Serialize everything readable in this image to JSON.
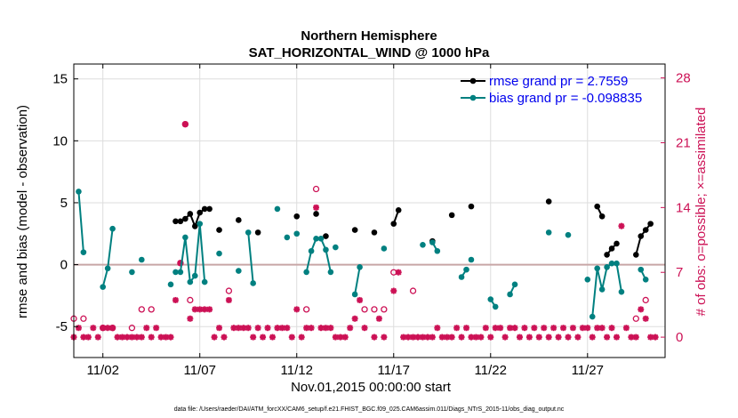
{
  "chart_data": {
    "type": "scatter",
    "title": "Northern Hemisphere",
    "subtitle": "SAT_HORIZONTAL_WIND @ 1000 hPa",
    "xlabel": "Nov.01,2015 00:00:00 start",
    "ylabel": "rmse and bias (model - observation)",
    "ylabel_right": "# of obs: o=possible; ×=assimilated",
    "footer": "data file: /Users/raeder/DAI/ATM_forcXX/CAM6_setup/f.e21.FHIST_BGC.f09_025.CAM6assim.011/Diags_NTrS_2015-11/obs_diag_output.nc",
    "xlim": [
      0.5,
      31.0
    ],
    "ylim": [
      -7.5,
      16.2
    ],
    "yticks": [
      -5,
      0,
      5,
      10,
      15
    ],
    "ylim_right": [
      -2.2,
      29.5
    ],
    "yticks_right": [
      0,
      7,
      14,
      21,
      28
    ],
    "xticks": [
      {
        "value": 2,
        "label": "11/02"
      },
      {
        "value": 7,
        "label": "11/07"
      },
      {
        "value": 12,
        "label": "11/12"
      },
      {
        "value": 17,
        "label": "11/17"
      },
      {
        "value": 22,
        "label": "11/22"
      },
      {
        "value": 27,
        "label": "11/27"
      }
    ],
    "grid": true,
    "legend_position": "top-right",
    "colors": {
      "rmse": "#000000",
      "bias": "#008080",
      "obs": "#cc1155",
      "zero_line": "#c8a6a6"
    },
    "series": [
      {
        "name": "rmse grand pr = 2.7559",
        "segments": [
          [
            [
              5.75,
              3.5
            ],
            [
              6.0,
              3.5
            ],
            [
              6.25,
              3.7
            ],
            [
              6.5,
              4.1
            ],
            [
              6.75,
              3.1
            ],
            [
              7.0,
              4.2
            ],
            [
              7.25,
              4.5
            ],
            [
              7.5,
              4.5
            ]
          ],
          [
            [
              8.0,
              2.8
            ]
          ],
          [
            [
              9.0,
              3.6
            ]
          ],
          [
            [
              10.0,
              2.6
            ]
          ],
          [
            [
              12.0,
              3.9
            ]
          ],
          [
            [
              13.0,
              4.1
            ]
          ],
          [
            [
              13.5,
              2.3
            ]
          ],
          [
            [
              15.0,
              2.8
            ]
          ],
          [
            [
              16.0,
              2.6
            ]
          ],
          [
            [
              17.0,
              3.3
            ],
            [
              17.25,
              4.4
            ]
          ],
          [
            [
              19.0,
              1.9
            ]
          ],
          [
            [
              20.0,
              4.0
            ]
          ],
          [
            [
              21.0,
              4.7
            ]
          ],
          [
            [
              25.0,
              5.1
            ]
          ],
          [
            [
              27.5,
              4.7
            ],
            [
              27.75,
              3.9
            ]
          ],
          [
            [
              28.0,
              0.8
            ],
            [
              28.25,
              1.3
            ],
            [
              28.5,
              1.7
            ]
          ],
          [
            [
              29.5,
              0.8
            ],
            [
              29.75,
              2.3
            ],
            [
              30.0,
              2.8
            ],
            [
              30.25,
              3.3
            ]
          ]
        ]
      },
      {
        "name": "bias grand pr = -0.098835",
        "segments": [
          [
            [
              0.75,
              5.9
            ],
            [
              1.0,
              1.0
            ]
          ],
          [
            [
              2.0,
              -1.8
            ],
            [
              2.25,
              -0.3
            ],
            [
              2.5,
              2.9
            ]
          ],
          [
            [
              3.5,
              -0.6
            ]
          ],
          [
            [
              4.0,
              0.4
            ]
          ],
          [
            [
              5.5,
              -1.6
            ]
          ],
          [
            [
              5.75,
              -0.6
            ],
            [
              6.0,
              -0.6
            ],
            [
              6.25,
              2.2
            ],
            [
              6.5,
              -1.4
            ],
            [
              6.75,
              -0.9
            ],
            [
              7.0,
              3.3
            ],
            [
              7.25,
              -1.4
            ]
          ],
          [
            [
              8.0,
              0.9
            ]
          ],
          [
            [
              9.0,
              -0.5
            ]
          ],
          [
            [
              9.5,
              2.6
            ],
            [
              9.75,
              -1.5
            ]
          ],
          [
            [
              11.0,
              4.5
            ]
          ],
          [
            [
              11.5,
              2.2
            ]
          ],
          [
            [
              12.0,
              2.5
            ]
          ],
          [
            [
              12.5,
              -0.6
            ],
            [
              12.75,
              1.1
            ],
            [
              13.0,
              2.1
            ],
            [
              13.25,
              2.1
            ],
            [
              13.5,
              1.2
            ],
            [
              13.75,
              -0.6
            ]
          ],
          [
            [
              14.0,
              1.4
            ]
          ],
          [
            [
              15.0,
              -2.4
            ],
            [
              15.25,
              -0.2
            ]
          ],
          [
            [
              16.5,
              1.3
            ]
          ],
          [
            [
              18.5,
              1.6
            ]
          ],
          [
            [
              19.0,
              1.8
            ],
            [
              19.25,
              1.1
            ]
          ],
          [
            [
              20.5,
              -1.0
            ],
            [
              20.75,
              -0.4
            ]
          ],
          [
            [
              21.0,
              0.4
            ]
          ],
          [
            [
              22.0,
              -2.8
            ],
            [
              22.25,
              -3.4
            ]
          ],
          [
            [
              23.0,
              -2.4
            ],
            [
              23.25,
              -1.6
            ]
          ],
          [
            [
              25.0,
              2.6
            ]
          ],
          [
            [
              26.0,
              2.4
            ]
          ],
          [
            [
              27.0,
              -1.2
            ]
          ],
          [
            [
              27.25,
              -4.2
            ],
            [
              27.5,
              -0.3
            ],
            [
              27.75,
              -2.0
            ],
            [
              28.0,
              -0.2
            ],
            [
              28.25,
              0.1
            ],
            [
              28.5,
              0.1
            ],
            [
              28.75,
              -2.2
            ]
          ],
          [
            [
              29.75,
              -0.4
            ],
            [
              30.0,
              -1.2
            ]
          ]
        ]
      },
      {
        "name": "possible obs",
        "axis": "right",
        "points": [
          [
            0.5,
            2
          ],
          [
            1.0,
            2
          ],
          [
            2.0,
            1
          ],
          [
            2.5,
            1
          ],
          [
            3.5,
            1
          ],
          [
            4.0,
            3
          ],
          [
            4.5,
            3
          ],
          [
            6.0,
            8
          ],
          [
            6.25,
            23
          ],
          [
            6.5,
            4
          ],
          [
            8.5,
            5
          ],
          [
            12.5,
            3
          ],
          [
            13.0,
            16
          ],
          [
            15.5,
            3
          ],
          [
            16.0,
            3
          ],
          [
            16.5,
            3
          ],
          [
            17.0,
            7
          ],
          [
            18.0,
            5
          ],
          [
            29.5,
            2
          ],
          [
            30.0,
            4
          ]
        ]
      },
      {
        "name": "assimilated obs",
        "axis": "right",
        "points": [
          [
            0.5,
            0
          ],
          [
            0.75,
            1
          ],
          [
            1.0,
            0
          ],
          [
            1.25,
            0
          ],
          [
            1.5,
            1
          ],
          [
            1.75,
            0
          ],
          [
            2.0,
            1
          ],
          [
            2.25,
            1
          ],
          [
            2.5,
            1
          ],
          [
            2.75,
            0
          ],
          [
            3.0,
            0
          ],
          [
            3.25,
            0
          ],
          [
            3.5,
            0
          ],
          [
            3.75,
            0
          ],
          [
            4.0,
            0
          ],
          [
            4.25,
            1
          ],
          [
            4.5,
            0
          ],
          [
            4.75,
            1
          ],
          [
            5.0,
            0
          ],
          [
            5.25,
            0
          ],
          [
            5.5,
            0
          ],
          [
            5.75,
            4
          ],
          [
            6.0,
            8
          ],
          [
            6.25,
            23
          ],
          [
            6.5,
            2
          ],
          [
            6.75,
            3
          ],
          [
            7.0,
            3
          ],
          [
            7.25,
            3
          ],
          [
            7.5,
            3
          ],
          [
            7.75,
            0
          ],
          [
            8.0,
            1
          ],
          [
            8.25,
            0
          ],
          [
            8.5,
            4
          ],
          [
            8.75,
            1
          ],
          [
            9.0,
            1
          ],
          [
            9.25,
            1
          ],
          [
            9.5,
            1
          ],
          [
            9.75,
            0
          ],
          [
            10.0,
            1
          ],
          [
            10.25,
            0
          ],
          [
            10.5,
            1
          ],
          [
            10.75,
            0
          ],
          [
            11.0,
            1
          ],
          [
            11.25,
            1
          ],
          [
            11.5,
            1
          ],
          [
            11.75,
            0
          ],
          [
            12.0,
            3
          ],
          [
            12.25,
            0
          ],
          [
            12.5,
            1
          ],
          [
            12.75,
            1
          ],
          [
            13.0,
            14
          ],
          [
            13.25,
            1
          ],
          [
            13.5,
            1
          ],
          [
            13.75,
            1
          ],
          [
            14.0,
            0
          ],
          [
            14.25,
            0
          ],
          [
            14.5,
            0
          ],
          [
            14.75,
            1
          ],
          [
            15.0,
            2
          ],
          [
            15.25,
            4
          ],
          [
            15.5,
            1
          ],
          [
            16.0,
            0
          ],
          [
            16.25,
            2
          ],
          [
            16.5,
            0
          ],
          [
            17.0,
            5
          ],
          [
            17.25,
            7
          ],
          [
            17.5,
            0
          ],
          [
            17.75,
            0
          ],
          [
            18.0,
            0
          ],
          [
            18.25,
            0
          ],
          [
            18.5,
            0
          ],
          [
            18.75,
            0
          ],
          [
            19.0,
            0
          ],
          [
            19.25,
            1
          ],
          [
            19.5,
            0
          ],
          [
            19.75,
            0
          ],
          [
            20.0,
            0
          ],
          [
            20.25,
            1
          ],
          [
            20.5,
            0
          ],
          [
            20.75,
            1
          ],
          [
            21.0,
            0
          ],
          [
            21.25,
            0
          ],
          [
            21.5,
            0
          ],
          [
            21.75,
            1
          ],
          [
            22.0,
            0
          ],
          [
            22.25,
            1
          ],
          [
            22.5,
            1
          ],
          [
            22.75,
            0
          ],
          [
            23.0,
            1
          ],
          [
            23.25,
            1
          ],
          [
            23.5,
            0
          ],
          [
            23.75,
            1
          ],
          [
            24.0,
            0
          ],
          [
            24.25,
            1
          ],
          [
            24.5,
            0
          ],
          [
            24.75,
            1
          ],
          [
            25.0,
            0
          ],
          [
            25.25,
            1
          ],
          [
            25.5,
            0
          ],
          [
            25.75,
            1
          ],
          [
            26.0,
            0
          ],
          [
            26.25,
            1
          ],
          [
            26.5,
            0
          ],
          [
            26.75,
            1
          ],
          [
            27.0,
            1
          ],
          [
            27.25,
            0
          ],
          [
            27.5,
            1
          ],
          [
            27.75,
            1
          ],
          [
            28.0,
            0
          ],
          [
            28.25,
            1
          ],
          [
            28.5,
            0
          ],
          [
            28.75,
            12
          ],
          [
            29.0,
            1
          ],
          [
            29.25,
            0
          ],
          [
            29.5,
            0
          ],
          [
            29.75,
            3
          ],
          [
            30.0,
            2
          ],
          [
            30.25,
            0
          ],
          [
            30.5,
            0
          ]
        ]
      }
    ]
  }
}
